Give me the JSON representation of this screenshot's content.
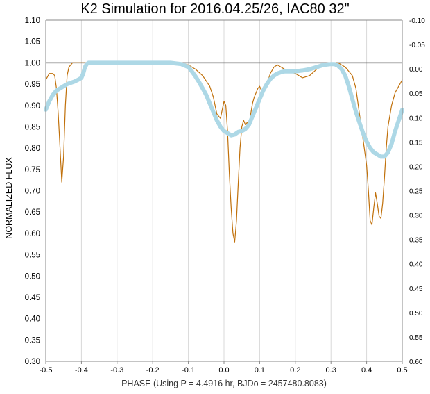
{
  "chart_data": {
    "type": "line",
    "title": "K2 Simulation for 2016.04.25/26,  IAC80 32\"",
    "xlabel": "PHASE (Using P = 4.4916 hr, BJDo = 2457480.8083)",
    "ylabel": "NORMALIZED FLUX",
    "xlim": [
      -0.5,
      0.5
    ],
    "ylim": [
      0.3,
      1.1
    ],
    "y2lim": [
      0.6,
      -0.1
    ],
    "x_ticks": [
      "-0.5",
      "-0.4",
      "-0.3",
      "-0.2",
      "-0.1",
      "0.0",
      "0.1",
      "0.2",
      "0.3",
      "0.4",
      "0.5"
    ],
    "y_ticks": [
      "0.30",
      "0.35",
      "0.40",
      "0.45",
      "0.50",
      "0.55",
      "0.60",
      "0.65",
      "0.70",
      "0.75",
      "0.80",
      "0.85",
      "0.90",
      "0.95",
      "1.00",
      "1.05",
      "1.10"
    ],
    "y2_ticks": [
      "0.60",
      "0.55",
      "0.50",
      "0.45",
      "0.40",
      "0.35",
      "0.30",
      "0.25",
      "0.20",
      "0.15",
      "0.10",
      "0.05",
      "0.00",
      "-0.05",
      "-0.10"
    ],
    "grid": "vertical",
    "reference_line": 1.0,
    "colors": {
      "thin": "#c0700a",
      "thick": "#add8e6",
      "ref": "#555555",
      "grid": "#d9d9d9"
    },
    "series": [
      {
        "style": "thin",
        "x": [
          -0.5,
          -0.49,
          -0.48,
          -0.475,
          -0.47,
          -0.465,
          -0.46,
          -0.455,
          -0.45,
          -0.445,
          -0.44,
          -0.435,
          -0.43,
          -0.425,
          -0.42,
          -0.41,
          -0.4,
          -0.3,
          -0.2,
          -0.15,
          -0.12,
          -0.1,
          -0.08,
          -0.06,
          -0.04,
          -0.03,
          -0.02,
          -0.01,
          0.0,
          0.005,
          0.01,
          0.015,
          0.02,
          0.025,
          0.03,
          0.035,
          0.04,
          0.045,
          0.05,
          0.055,
          0.06,
          0.065,
          0.07,
          0.075,
          0.08,
          0.085,
          0.09,
          0.095,
          0.1,
          0.105,
          0.11,
          0.12,
          0.13,
          0.14,
          0.15,
          0.16,
          0.18,
          0.2,
          0.22,
          0.24,
          0.26,
          0.28,
          0.3,
          0.32,
          0.34,
          0.36,
          0.37,
          0.38,
          0.39,
          0.4,
          0.405,
          0.41,
          0.415,
          0.42,
          0.425,
          0.43,
          0.435,
          0.44,
          0.445,
          0.45,
          0.455,
          0.46,
          0.47,
          0.48,
          0.49,
          0.5
        ],
        "values": [
          0.96,
          0.975,
          0.975,
          0.97,
          0.94,
          0.88,
          0.8,
          0.72,
          0.78,
          0.9,
          0.97,
          0.99,
          0.995,
          1.0,
          1.0,
          1.0,
          1.0,
          1.0,
          1.0,
          1.0,
          1.0,
          0.995,
          0.985,
          0.97,
          0.945,
          0.92,
          0.88,
          0.87,
          0.91,
          0.9,
          0.84,
          0.74,
          0.66,
          0.6,
          0.58,
          0.63,
          0.72,
          0.8,
          0.85,
          0.865,
          0.855,
          0.86,
          0.85,
          0.88,
          0.905,
          0.92,
          0.93,
          0.94,
          0.945,
          0.935,
          0.93,
          0.95,
          0.975,
          0.99,
          0.995,
          0.99,
          0.98,
          0.975,
          0.965,
          0.97,
          0.985,
          0.995,
          1.0,
          1.0,
          0.99,
          0.97,
          0.94,
          0.88,
          0.82,
          0.76,
          0.7,
          0.63,
          0.62,
          0.66,
          0.695,
          0.67,
          0.64,
          0.635,
          0.67,
          0.73,
          0.8,
          0.85,
          0.9,
          0.93,
          0.945,
          0.96
        ]
      },
      {
        "style": "thick",
        "x": [
          -0.5,
          -0.49,
          -0.48,
          -0.47,
          -0.46,
          -0.45,
          -0.44,
          -0.43,
          -0.42,
          -0.41,
          -0.4,
          -0.395,
          -0.39,
          -0.385,
          -0.38,
          -0.37,
          -0.36,
          -0.3,
          -0.2,
          -0.15,
          -0.12,
          -0.1,
          -0.09,
          -0.08,
          -0.07,
          -0.06,
          -0.05,
          -0.04,
          -0.03,
          -0.02,
          -0.01,
          0.0,
          0.01,
          0.02,
          0.03,
          0.04,
          0.05,
          0.06,
          0.07,
          0.08,
          0.09,
          0.1,
          0.11,
          0.12,
          0.13,
          0.14,
          0.15,
          0.16,
          0.17,
          0.18,
          0.2,
          0.22,
          0.24,
          0.26,
          0.28,
          0.3,
          0.31,
          0.32,
          0.33,
          0.34,
          0.35,
          0.36,
          0.37,
          0.38,
          0.39,
          0.4,
          0.41,
          0.42,
          0.43,
          0.44,
          0.45,
          0.46,
          0.47,
          0.48,
          0.49,
          0.5
        ],
        "values": [
          0.89,
          0.91,
          0.925,
          0.935,
          0.94,
          0.945,
          0.95,
          0.953,
          0.956,
          0.96,
          0.965,
          0.975,
          0.99,
          0.997,
          1.0,
          1.0,
          1.0,
          1.0,
          1.0,
          1.0,
          0.997,
          0.99,
          0.98,
          0.968,
          0.955,
          0.94,
          0.925,
          0.905,
          0.885,
          0.865,
          0.85,
          0.84,
          0.835,
          0.83,
          0.832,
          0.838,
          0.84,
          0.845,
          0.855,
          0.875,
          0.895,
          0.915,
          0.935,
          0.95,
          0.962,
          0.97,
          0.975,
          0.978,
          0.98,
          0.98,
          0.98,
          0.982,
          0.985,
          0.99,
          0.995,
          0.997,
          0.997,
          0.993,
          0.985,
          0.97,
          0.945,
          0.915,
          0.885,
          0.86,
          0.835,
          0.815,
          0.8,
          0.79,
          0.785,
          0.78,
          0.78,
          0.79,
          0.81,
          0.84,
          0.865,
          0.89
        ]
      }
    ]
  }
}
